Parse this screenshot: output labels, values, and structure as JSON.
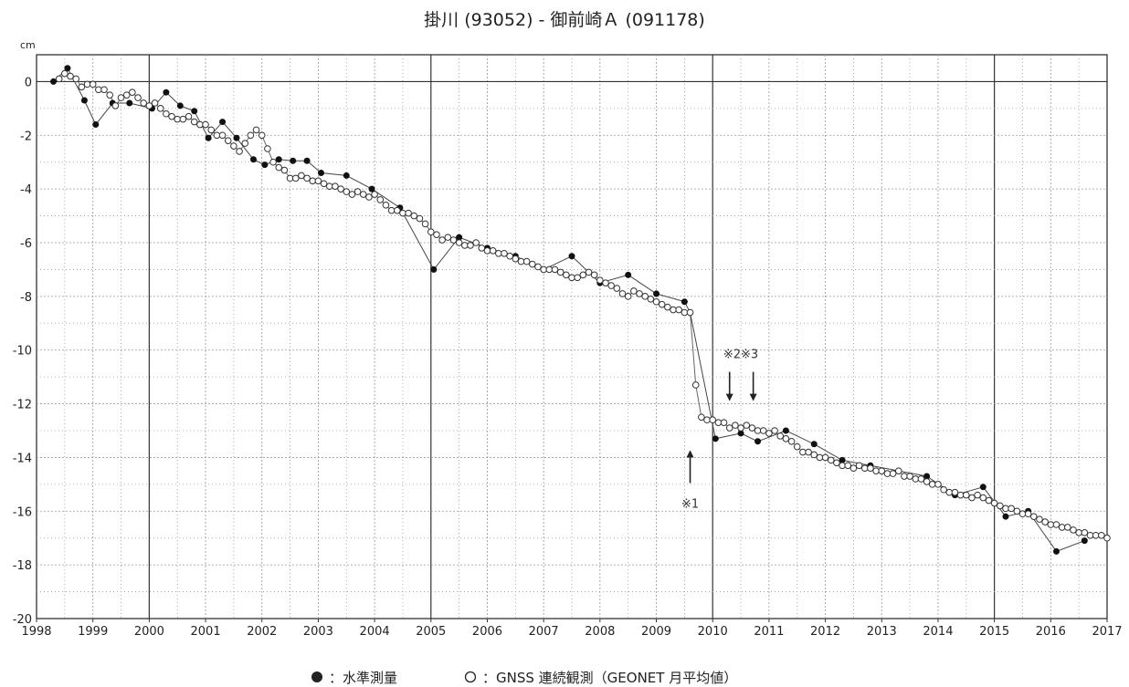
{
  "chart_data": {
    "type": "scatter",
    "title": "掛川 (93052) - 御前崎Ａ (091178)",
    "unit_label": "cm",
    "xlim": [
      1998,
      2017
    ],
    "ylim": [
      -20,
      1
    ],
    "x_ticks": [
      1998,
      1999,
      2000,
      2001,
      2002,
      2003,
      2004,
      2005,
      2006,
      2007,
      2008,
      2009,
      2010,
      2011,
      2012,
      2013,
      2014,
      2015,
      2016,
      2017
    ],
    "y_ticks": [
      0,
      -2,
      -4,
      -6,
      -8,
      -10,
      -12,
      -14,
      -16,
      -18,
      -20
    ],
    "grid": true,
    "major_vertical_lines": [
      2000,
      2005,
      2010,
      2015
    ],
    "series": [
      {
        "name": "水準測量",
        "marker": "filled-circle",
        "x": [
          1998.3,
          1998.55,
          1998.85,
          1999.05,
          1999.35,
          1999.65,
          2000.05,
          2000.3,
          2000.55,
          2000.8,
          2001.05,
          2001.3,
          2001.55,
          2001.85,
          2002.05,
          2002.3,
          2002.55,
          2002.8,
          2003.05,
          2003.5,
          2003.95,
          2004.45,
          2005.05,
          2005.5,
          2006.0,
          2006.5,
          2007.0,
          2007.5,
          2008.0,
          2008.5,
          2009.0,
          2009.5,
          2009.6,
          2010.05,
          2010.5,
          2010.8,
          2011.3,
          2011.8,
          2012.3,
          2012.8,
          2013.3,
          2013.8,
          2014.3,
          2014.8,
          2015.2,
          2015.6,
          2016.1,
          2016.6
        ],
        "values": [
          0.0,
          0.5,
          -0.7,
          -1.6,
          -0.8,
          -0.8,
          -1.0,
          -0.4,
          -0.9,
          -1.1,
          -2.1,
          -1.5,
          -2.1,
          -2.9,
          -3.1,
          -2.9,
          -2.95,
          -2.95,
          -3.4,
          -3.5,
          -4.0,
          -4.7,
          -7.0,
          -5.8,
          -6.2,
          -6.5,
          -7.0,
          -6.5,
          -7.5,
          -7.2,
          -7.9,
          -8.2,
          -8.6,
          -13.3,
          -13.1,
          -13.4,
          -13.0,
          -13.5,
          -14.1,
          -14.3,
          -14.5,
          -14.7,
          -15.4,
          -15.1,
          -16.2,
          -16.0,
          -17.5,
          -17.1
        ]
      },
      {
        "name": "GNSS 連続観測（GEONET 月平均値）",
        "marker": "open-circle",
        "x": [
          1998.4,
          1998.5,
          1998.6,
          1998.7,
          1998.8,
          1998.9,
          1999.0,
          1999.1,
          1999.2,
          1999.3,
          1999.4,
          1999.5,
          1999.6,
          1999.7,
          1999.8,
          1999.9,
          2000.0,
          2000.1,
          2000.2,
          2000.3,
          2000.4,
          2000.5,
          2000.6,
          2000.7,
          2000.8,
          2000.9,
          2001.0,
          2001.1,
          2001.2,
          2001.3,
          2001.4,
          2001.5,
          2001.6,
          2001.7,
          2001.8,
          2001.9,
          2002.0,
          2002.1,
          2002.2,
          2002.3,
          2002.4,
          2002.5,
          2002.6,
          2002.7,
          2002.8,
          2002.9,
          2003.0,
          2003.1,
          2003.2,
          2003.3,
          2003.4,
          2003.5,
          2003.6,
          2003.7,
          2003.8,
          2003.9,
          2004.0,
          2004.1,
          2004.2,
          2004.3,
          2004.4,
          2004.5,
          2004.6,
          2004.7,
          2004.8,
          2004.9,
          2005.0,
          2005.1,
          2005.2,
          2005.3,
          2005.4,
          2005.5,
          2005.6,
          2005.7,
          2005.8,
          2005.9,
          2006.0,
          2006.1,
          2006.2,
          2006.3,
          2006.4,
          2006.5,
          2006.6,
          2006.7,
          2006.8,
          2006.9,
          2007.0,
          2007.1,
          2007.2,
          2007.3,
          2007.4,
          2007.5,
          2007.6,
          2007.7,
          2007.8,
          2007.9,
          2008.0,
          2008.1,
          2008.2,
          2008.3,
          2008.4,
          2008.5,
          2008.6,
          2008.7,
          2008.8,
          2008.9,
          2009.0,
          2009.1,
          2009.2,
          2009.3,
          2009.4,
          2009.5,
          2009.6,
          2009.7,
          2009.8,
          2009.9,
          2010.0,
          2010.1,
          2010.2,
          2010.3,
          2010.4,
          2010.5,
          2010.6,
          2010.7,
          2010.8,
          2010.9,
          2011.0,
          2011.1,
          2011.2,
          2011.3,
          2011.4,
          2011.5,
          2011.6,
          2011.7,
          2011.8,
          2011.9,
          2012.0,
          2012.1,
          2012.2,
          2012.3,
          2012.4,
          2012.5,
          2012.6,
          2012.7,
          2012.8,
          2012.9,
          2013.0,
          2013.1,
          2013.2,
          2013.3,
          2013.4,
          2013.5,
          2013.6,
          2013.7,
          2013.8,
          2013.9,
          2014.0,
          2014.1,
          2014.2,
          2014.3,
          2014.4,
          2014.5,
          2014.6,
          2014.7,
          2014.8,
          2014.9,
          2015.0,
          2015.1,
          2015.2,
          2015.3,
          2015.4,
          2015.5,
          2015.6,
          2015.7,
          2015.8,
          2015.9,
          2016.0,
          2016.1,
          2016.2,
          2016.3,
          2016.4,
          2016.5,
          2016.6,
          2016.7,
          2016.8,
          2016.9,
          2017.0
        ],
        "values": [
          0.1,
          0.3,
          0.2,
          0.1,
          -0.2,
          -0.1,
          -0.1,
          -0.3,
          -0.3,
          -0.5,
          -0.9,
          -0.6,
          -0.5,
          -0.4,
          -0.6,
          -0.8,
          -0.9,
          -0.8,
          -1.0,
          -1.2,
          -1.3,
          -1.4,
          -1.4,
          -1.3,
          -1.5,
          -1.6,
          -1.6,
          -1.8,
          -2.0,
          -2.0,
          -2.2,
          -2.4,
          -2.6,
          -2.3,
          -2.0,
          -1.8,
          -2.0,
          -2.5,
          -3.0,
          -3.2,
          -3.3,
          -3.6,
          -3.6,
          -3.5,
          -3.6,
          -3.7,
          -3.7,
          -3.8,
          -3.9,
          -3.9,
          -4.0,
          -4.1,
          -4.2,
          -4.1,
          -4.2,
          -4.3,
          -4.2,
          -4.4,
          -4.6,
          -4.8,
          -4.8,
          -4.9,
          -4.9,
          -5.0,
          -5.1,
          -5.3,
          -5.6,
          -5.7,
          -5.9,
          -5.8,
          -5.9,
          -6.0,
          -6.1,
          -6.1,
          -6.0,
          -6.2,
          -6.3,
          -6.3,
          -6.4,
          -6.4,
          -6.5,
          -6.6,
          -6.7,
          -6.7,
          -6.8,
          -6.9,
          -7.0,
          -7.0,
          -7.0,
          -7.1,
          -7.2,
          -7.3,
          -7.3,
          -7.2,
          -7.1,
          -7.2,
          -7.4,
          -7.5,
          -7.6,
          -7.7,
          -7.9,
          -8.0,
          -7.8,
          -7.9,
          -8.0,
          -8.1,
          -8.2,
          -8.3,
          -8.4,
          -8.5,
          -8.5,
          -8.6,
          -8.6,
          -11.3,
          -12.5,
          -12.6,
          -12.6,
          -12.7,
          -12.7,
          -12.9,
          -12.8,
          -12.9,
          -12.8,
          -12.9,
          -13.0,
          -13.0,
          -13.1,
          -13.0,
          -13.2,
          -13.3,
          -13.4,
          -13.6,
          -13.8,
          -13.8,
          -13.9,
          -14.0,
          -14.0,
          -14.1,
          -14.2,
          -14.3,
          -14.3,
          -14.4,
          -14.3,
          -14.4,
          -14.4,
          -14.5,
          -14.5,
          -14.6,
          -14.6,
          -14.5,
          -14.7,
          -14.7,
          -14.8,
          -14.8,
          -14.9,
          -15.0,
          -15.0,
          -15.2,
          -15.3,
          -15.3,
          -15.4,
          -15.4,
          -15.5,
          -15.4,
          -15.5,
          -15.6,
          -15.7,
          -15.8,
          -15.9,
          -15.9,
          -16.0,
          -16.1,
          -16.1,
          -16.2,
          -16.3,
          -16.4,
          -16.5,
          -16.5,
          -16.6,
          -16.6,
          -16.7,
          -16.8,
          -16.8,
          -16.9,
          -16.9,
          -16.9,
          -17.0
        ]
      }
    ],
    "annotations": [
      {
        "label": "※1",
        "x": 2009.6,
        "y": -14.0,
        "arrow": "up"
      },
      {
        "label": "※2※3",
        "x": 2010.5,
        "y": -12.0,
        "arrow": "down"
      }
    ],
    "legend": {
      "position": "bottom",
      "filled_marker_label": "：水準測量",
      "open_marker_label": "：GNSS 連続観測（GEONET 月平均値）"
    }
  }
}
